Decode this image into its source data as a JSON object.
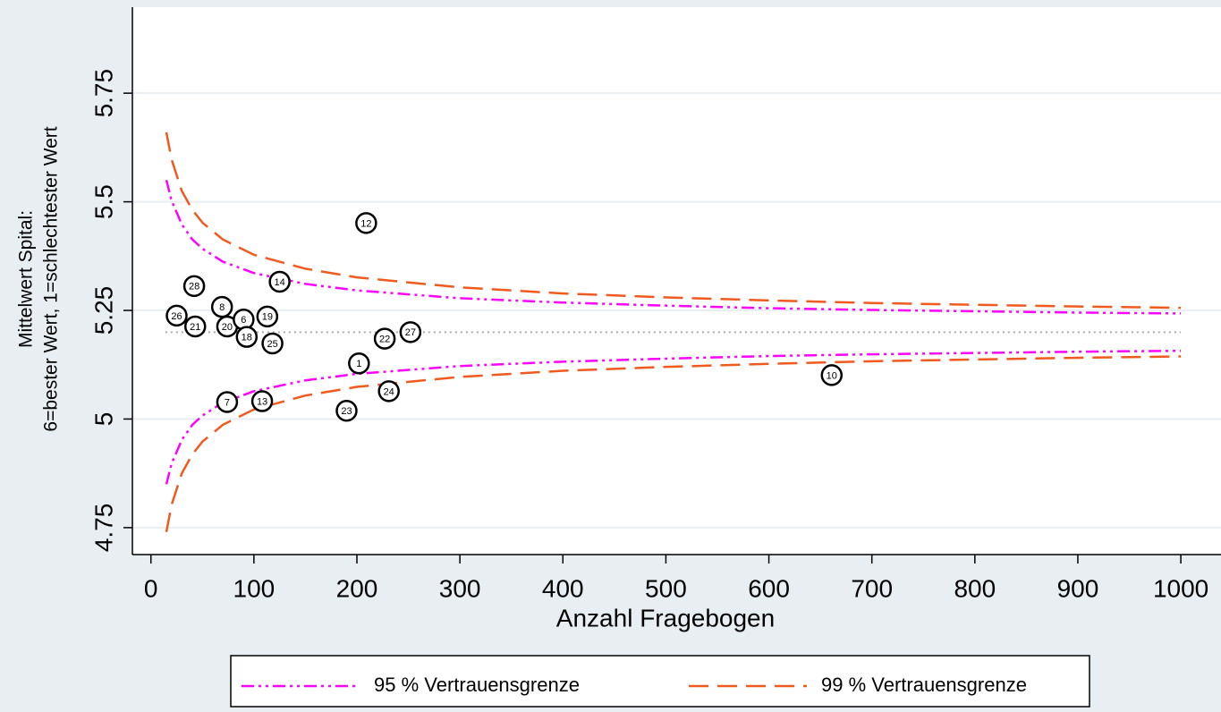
{
  "chart_data": {
    "type": "scatter",
    "y_label": [
      "Mittelwert Spital:",
      "6=bester Wert, 1=schlechtester Wert"
    ],
    "x_label": "Anzahl Fragebogen",
    "xlim": [
      -18,
      1039
    ],
    "ylim": [
      4.688,
      5.948
    ],
    "xticks": [
      0,
      100,
      200,
      300,
      400,
      500,
      600,
      700,
      800,
      900,
      1000
    ],
    "yticks": [
      4.75,
      5,
      5.25,
      5.5,
      5.75
    ],
    "grid": true,
    "point_color": "#000000",
    "points": {
      "labels": [
        "12",
        "14",
        "28",
        "8",
        "26",
        "21",
        "20",
        "6",
        "19",
        "18",
        "25",
        "22",
        "27",
        "1",
        "10",
        "7",
        "13",
        "24",
        "23"
      ],
      "x": [
        209,
        125,
        42,
        69,
        25,
        43,
        74,
        90,
        113,
        93,
        118,
        227,
        252,
        202,
        661,
        74,
        108,
        231,
        190
      ],
      "y": [
        5.451,
        5.316,
        5.306,
        5.258,
        5.238,
        5.213,
        5.213,
        5.229,
        5.236,
        5.189,
        5.174,
        5.185,
        5.2,
        5.128,
        5.101,
        5.039,
        5.041,
        5.064,
        5.019
      ]
    },
    "reference": {
      "value": 5.2,
      "x": [
        14,
        1000
      ],
      "color": "#aaaaaa"
    },
    "curve_x": [
      15,
      20,
      30,
      40,
      50,
      70,
      100,
      150,
      200,
      300,
      400,
      500,
      600,
      700,
      800,
      900,
      1000
    ],
    "bands": [
      {
        "name": "95 % Vertrauensgrenze",
        "color": "#ff00ff",
        "dash": "dashdot",
        "upper": [
          5.55,
          5.503,
          5.448,
          5.414,
          5.392,
          5.362,
          5.336,
          5.311,
          5.296,
          5.278,
          5.268,
          5.261,
          5.255,
          5.251,
          5.248,
          5.245,
          5.243
        ],
        "lower": [
          4.85,
          4.897,
          4.952,
          4.986,
          5.008,
          5.038,
          5.064,
          5.089,
          5.104,
          5.122,
          5.132,
          5.139,
          5.145,
          5.149,
          5.152,
          5.155,
          5.157
        ]
      },
      {
        "name": "99 % Vertrauensgrenze",
        "color": "#f05a1e",
        "dash": "dash",
        "upper": [
          5.66,
          5.598,
          5.525,
          5.482,
          5.452,
          5.413,
          5.378,
          5.346,
          5.326,
          5.303,
          5.289,
          5.28,
          5.273,
          5.267,
          5.263,
          5.259,
          5.256
        ],
        "lower": [
          4.74,
          4.802,
          4.875,
          4.918,
          4.948,
          4.987,
          5.022,
          5.054,
          5.074,
          5.097,
          5.111,
          5.12,
          5.127,
          5.133,
          5.137,
          5.141,
          5.144
        ]
      }
    ]
  }
}
